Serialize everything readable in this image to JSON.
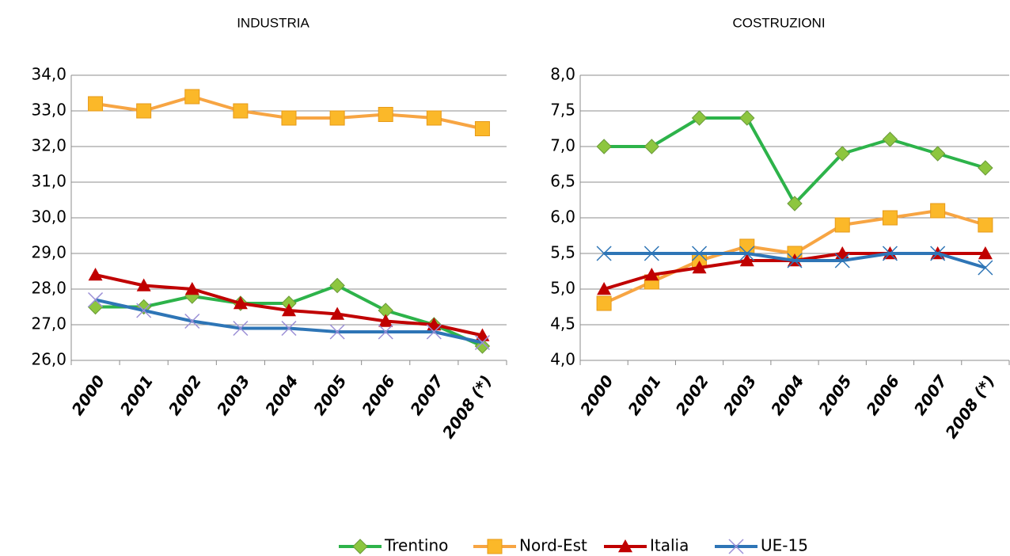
{
  "chart_data": [
    {
      "type": "line",
      "title": "INDUSTRIA",
      "categories": [
        "2000",
        "2001",
        "2002",
        "2003",
        "2004",
        "2005",
        "2006",
        "2007",
        "2008 (*)"
      ],
      "series": [
        {
          "name": "Trentino",
          "color": "#2db34a",
          "marker_color": "#8dc63f",
          "marker": "diamond",
          "values": [
            27.5,
            27.5,
            27.8,
            27.6,
            27.6,
            28.1,
            27.4,
            27.0,
            26.4
          ]
        },
        {
          "name": "Nord-Est",
          "color": "#f7a543",
          "marker_color": "#fbb829",
          "marker": "square",
          "values": [
            33.2,
            33.0,
            33.4,
            33.0,
            32.8,
            32.8,
            32.9,
            32.8,
            32.5
          ]
        },
        {
          "name": "Italia",
          "color": "#c00000",
          "marker_color": "#c00000",
          "marker": "triangle",
          "values": [
            28.4,
            28.1,
            28.0,
            27.6,
            27.4,
            27.3,
            27.1,
            27.0,
            26.7
          ]
        },
        {
          "name": "UE-15",
          "color": "#2e75b6",
          "marker_color": "#9b8fd6",
          "marker": "x",
          "values": [
            27.7,
            27.4,
            27.1,
            26.9,
            26.9,
            26.8,
            26.8,
            26.8,
            26.5
          ]
        }
      ],
      "ylim": [
        26,
        34
      ],
      "yticks": [
        {
          "value": 26,
          "label": "26,0"
        },
        {
          "value": 27,
          "label": "27,0"
        },
        {
          "value": 28,
          "label": "28,0"
        },
        {
          "value": 29,
          "label": "29,0"
        },
        {
          "value": 30,
          "label": "30,0"
        },
        {
          "value": 31,
          "label": "31,0"
        },
        {
          "value": 32,
          "label": "32,0"
        },
        {
          "value": 33,
          "label": "33,0"
        },
        {
          "value": 34,
          "label": "34,0"
        }
      ],
      "grid": true
    },
    {
      "type": "line",
      "title": "COSTRUZIONI",
      "categories": [
        "2000",
        "2001",
        "2002",
        "2003",
        "2004",
        "2005",
        "2006",
        "2007",
        "2008 (*)"
      ],
      "series": [
        {
          "name": "Trentino",
          "color": "#2db34a",
          "marker_color": "#8dc63f",
          "marker": "diamond",
          "values": [
            7.0,
            7.0,
            7.4,
            7.4,
            6.2,
            6.9,
            7.1,
            6.9,
            6.7
          ]
        },
        {
          "name": "Nord-Est",
          "color": "#f7a543",
          "marker_color": "#fbb829",
          "marker": "square",
          "values": [
            4.8,
            5.1,
            5.4,
            5.6,
            5.5,
            5.9,
            6.0,
            6.1,
            5.9
          ]
        },
        {
          "name": "Italia",
          "color": "#c00000",
          "marker_color": "#c00000",
          "marker": "triangle",
          "values": [
            5.0,
            5.2,
            5.3,
            5.4,
            5.4,
            5.5,
            5.5,
            5.5,
            5.5
          ]
        },
        {
          "name": "UE-15",
          "color": "#2e75b6",
          "marker_color": "#2e75b6",
          "marker": "x",
          "values": [
            5.5,
            5.5,
            5.5,
            5.5,
            5.4,
            5.4,
            5.5,
            5.5,
            5.3
          ]
        }
      ],
      "ylim": [
        4,
        8
      ],
      "yticks": [
        {
          "value": 4,
          "label": "4,0"
        },
        {
          "value": 4.5,
          "label": "4,5"
        },
        {
          "value": 5,
          "label": "5,0"
        },
        {
          "value": 5.5,
          "label": "5,5"
        },
        {
          "value": 6,
          "label": "6,0"
        },
        {
          "value": 6.5,
          "label": "6,5"
        },
        {
          "value": 7,
          "label": "7,0"
        },
        {
          "value": 7.5,
          "label": "7,5"
        },
        {
          "value": 8,
          "label": "8,0"
        }
      ],
      "grid": true
    }
  ]
}
